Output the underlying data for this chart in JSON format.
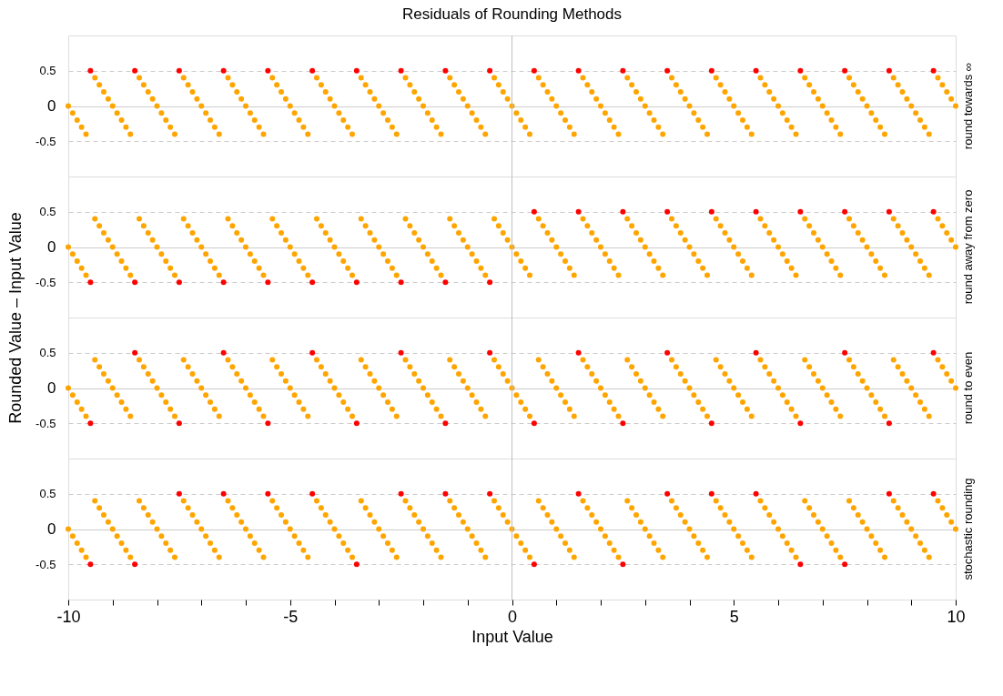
{
  "chart_data": [
    {
      "type": "scatter",
      "title": "Residuals of Rounding Methods",
      "y2label": "round towards ∞",
      "marker": "circle",
      "grid": "y",
      "tick_labels": "y",
      "x": [
        -10,
        -9.9,
        -9.8,
        -9.7,
        -9.6,
        -9.5,
        -9.4,
        -9.3,
        -9.2,
        -9.1,
        -9,
        -8.9,
        -8.8,
        -8.7,
        -8.6,
        -8.5,
        -8.4,
        -8.3,
        -8.2,
        -8.1,
        -8,
        -7.9,
        -7.8,
        -7.7,
        -7.6,
        -7.5,
        -7.4,
        -7.3,
        -7.2,
        -7.1,
        -7,
        -6.9,
        -6.8,
        -6.7,
        -6.6,
        -6.5,
        -6.4,
        -6.3,
        -6.2,
        -6.1,
        -6,
        -5.9,
        -5.8,
        -5.7,
        -5.6,
        -5.5,
        -5.4,
        -5.3,
        -5.2,
        -5.1,
        -5,
        -4.9,
        -4.8,
        -4.7,
        -4.6,
        -4.5,
        -4.4,
        -4.3,
        -4.2,
        -4.1,
        -4,
        -3.9,
        -3.8,
        -3.7,
        -3.6,
        -3.5,
        -3.4,
        -3.3,
        -3.2,
        -3.1,
        -3,
        -2.9,
        -2.8,
        -2.7,
        -2.6,
        -2.5,
        -2.4,
        -2.3,
        -2.2,
        -2.1,
        -2,
        -1.9,
        -1.8,
        -1.7,
        -1.6,
        -1.5,
        -1.4,
        -1.3,
        -1.2,
        -1.1,
        -1,
        -0.9,
        -0.8,
        -0.7,
        -0.6,
        -0.5,
        -0.4,
        -0.3,
        -0.2,
        -0.1,
        0,
        0.1,
        0.2,
        0.3,
        0.4,
        0.5,
        0.6,
        0.7,
        0.8,
        0.9,
        1,
        1.1,
        1.2,
        1.3,
        1.4,
        1.5,
        1.6,
        1.7,
        1.8,
        1.9,
        2,
        2.1,
        2.2,
        2.3,
        2.4,
        2.5,
        2.6,
        2.7,
        2.8,
        2.9,
        3,
        3.1,
        3.2,
        3.3,
        3.4,
        3.5,
        3.6,
        3.7,
        3.8,
        3.9,
        4,
        4.1,
        4.2,
        4.3,
        4.4,
        4.5,
        4.6,
        4.7,
        4.8,
        4.9,
        5,
        5.1,
        5.2,
        5.3,
        5.4,
        5.5,
        5.6,
        5.7,
        5.8,
        5.9,
        6,
        6.1,
        6.2,
        6.3,
        6.4,
        6.5,
        6.6,
        6.7,
        6.8,
        6.9,
        7,
        7.1,
        7.2,
        7.3,
        7.4,
        7.5,
        7.6,
        7.7,
        7.8,
        7.9,
        8,
        8.1,
        8.2,
        8.3,
        8.4,
        8.5,
        8.6,
        8.7,
        8.8,
        8.9,
        9,
        9.1,
        9.2,
        9.3,
        9.4,
        9.5,
        9.6,
        9.7,
        9.8,
        9.9,
        10
      ],
      "xlim": [
        -10,
        10
      ],
      "ylim": [
        -1,
        1
      ],
      "yticks": [
        -0.5,
        0,
        0.5
      ],
      "ref_lines": [
        {
          "axis": "x",
          "value": 0,
          "color": "#c0c0c0"
        }
      ],
      "series": [
        {
          "color": "#ffa500",
          "values": [
            0,
            -0.1,
            -0.2,
            -0.3,
            -0.4,
            null,
            0.4,
            0.3,
            0.2,
            0.1,
            0,
            -0.1,
            -0.2,
            -0.3,
            -0.4,
            null,
            0.4,
            0.3,
            0.2,
            0.1,
            0,
            -0.1,
            -0.2,
            -0.3,
            -0.4,
            null,
            0.4,
            0.3,
            0.2,
            0.1,
            0,
            -0.1,
            -0.2,
            -0.3,
            -0.4,
            null,
            0.4,
            0.3,
            0.2,
            0.1,
            0,
            -0.1,
            -0.2,
            -0.3,
            -0.4,
            null,
            0.4,
            0.3,
            0.2,
            0.1,
            0,
            -0.1,
            -0.2,
            -0.3,
            -0.4,
            null,
            0.4,
            0.3,
            0.2,
            0.1,
            0,
            -0.1,
            -0.2,
            -0.3,
            -0.4,
            null,
            0.4,
            0.3,
            0.2,
            0.1,
            0,
            -0.1,
            -0.2,
            -0.3,
            -0.4,
            null,
            0.4,
            0.3,
            0.2,
            0.1,
            0,
            -0.1,
            -0.2,
            -0.3,
            -0.4,
            null,
            0.4,
            0.3,
            0.2,
            0.1,
            0,
            -0.1,
            -0.2,
            -0.3,
            -0.4,
            null,
            0.4,
            0.3,
            0.2,
            0.1,
            0,
            -0.1,
            -0.2,
            -0.3,
            -0.4,
            null,
            0.4,
            0.3,
            0.2,
            0.1,
            0,
            -0.1,
            -0.2,
            -0.3,
            -0.4,
            null,
            0.4,
            0.3,
            0.2,
            0.1,
            0,
            -0.1,
            -0.2,
            -0.3,
            -0.4,
            null,
            0.4,
            0.3,
            0.2,
            0.1,
            0,
            -0.1,
            -0.2,
            -0.3,
            -0.4,
            null,
            0.4,
            0.3,
            0.2,
            0.1,
            0,
            -0.1,
            -0.2,
            -0.3,
            -0.4,
            null,
            0.4,
            0.3,
            0.2,
            0.1,
            0,
            -0.1,
            -0.2,
            -0.3,
            -0.4,
            null,
            0.4,
            0.3,
            0.2,
            0.1,
            0,
            -0.1,
            -0.2,
            -0.3,
            -0.4,
            null,
            0.4,
            0.3,
            0.2,
            0.1,
            0,
            -0.1,
            -0.2,
            -0.3,
            -0.4,
            null,
            0.4,
            0.3,
            0.2,
            0.1,
            0,
            -0.1,
            -0.2,
            -0.3,
            -0.4,
            null,
            0.4,
            0.3,
            0.2,
            0.1,
            0,
            -0.1,
            -0.2,
            -0.3,
            -0.4,
            null,
            0.4,
            0.3,
            0.2,
            0.1,
            0
          ]
        },
        {
          "color": "#ff0000",
          "x": [
            -9.5,
            -8.5,
            -7.5,
            -6.5,
            -5.5,
            -4.5,
            -3.5,
            -2.5,
            -1.5,
            -0.5,
            0.5,
            1.5,
            2.5,
            3.5,
            4.5,
            5.5,
            6.5,
            7.5,
            8.5,
            9.5
          ],
          "values": [
            0.5,
            0.5,
            0.5,
            0.5,
            0.5,
            0.5,
            0.5,
            0.5,
            0.5,
            0.5,
            0.5,
            0.5,
            0.5,
            0.5,
            0.5,
            0.5,
            0.5,
            0.5,
            0.5,
            0.5
          ]
        }
      ]
    },
    {
      "type": "scatter",
      "y2label": "round away from zero",
      "ylabel": "Rounded Value – Input Value",
      "marker": "circle",
      "grid": "y",
      "tick_labels": "y",
      "x": [
        -10,
        -9.9,
        -9.8,
        -9.7,
        -9.6,
        -9.5,
        -9.4,
        -9.3,
        -9.2,
        -9.1,
        -9,
        -8.9,
        -8.8,
        -8.7,
        -8.6,
        -8.5,
        -8.4,
        -8.3,
        -8.2,
        -8.1,
        -8,
        -7.9,
        -7.8,
        -7.7,
        -7.6,
        -7.5,
        -7.4,
        -7.3,
        -7.2,
        -7.1,
        -7,
        -6.9,
        -6.8,
        -6.7,
        -6.6,
        -6.5,
        -6.4,
        -6.3,
        -6.2,
        -6.1,
        -6,
        -5.9,
        -5.8,
        -5.7,
        -5.6,
        -5.5,
        -5.4,
        -5.3,
        -5.2,
        -5.1,
        -5,
        -4.9,
        -4.8,
        -4.7,
        -4.6,
        -4.5,
        -4.4,
        -4.3,
        -4.2,
        -4.1,
        -4,
        -3.9,
        -3.8,
        -3.7,
        -3.6,
        -3.5,
        -3.4,
        -3.3,
        -3.2,
        -3.1,
        -3,
        -2.9,
        -2.8,
        -2.7,
        -2.6,
        -2.5,
        -2.4,
        -2.3,
        -2.2,
        -2.1,
        -2,
        -1.9,
        -1.8,
        -1.7,
        -1.6,
        -1.5,
        -1.4,
        -1.3,
        -1.2,
        -1.1,
        -1,
        -0.9,
        -0.8,
        -0.7,
        -0.6,
        -0.5,
        -0.4,
        -0.3,
        -0.2,
        -0.1,
        0,
        0.1,
        0.2,
        0.3,
        0.4,
        0.5,
        0.6,
        0.7,
        0.8,
        0.9,
        1,
        1.1,
        1.2,
        1.3,
        1.4,
        1.5,
        1.6,
        1.7,
        1.8,
        1.9,
        2,
        2.1,
        2.2,
        2.3,
        2.4,
        2.5,
        2.6,
        2.7,
        2.8,
        2.9,
        3,
        3.1,
        3.2,
        3.3,
        3.4,
        3.5,
        3.6,
        3.7,
        3.8,
        3.9,
        4,
        4.1,
        4.2,
        4.3,
        4.4,
        4.5,
        4.6,
        4.7,
        4.8,
        4.9,
        5,
        5.1,
        5.2,
        5.3,
        5.4,
        5.5,
        5.6,
        5.7,
        5.8,
        5.9,
        6,
        6.1,
        6.2,
        6.3,
        6.4,
        6.5,
        6.6,
        6.7,
        6.8,
        6.9,
        7,
        7.1,
        7.2,
        7.3,
        7.4,
        7.5,
        7.6,
        7.7,
        7.8,
        7.9,
        8,
        8.1,
        8.2,
        8.3,
        8.4,
        8.5,
        8.6,
        8.7,
        8.8,
        8.9,
        9,
        9.1,
        9.2,
        9.3,
        9.4,
        9.5,
        9.6,
        9.7,
        9.8,
        9.9,
        10
      ],
      "xlim": [
        -10,
        10
      ],
      "ylim": [
        -1,
        1
      ],
      "yticks": [
        -0.5,
        0,
        0.5
      ],
      "ref_lines": [
        {
          "axis": "x",
          "value": 0,
          "color": "#c0c0c0"
        }
      ],
      "series": [
        {
          "color": "#ffa500",
          "values": [
            0,
            -0.1,
            -0.2,
            -0.3,
            -0.4,
            null,
            0.4,
            0.3,
            0.2,
            0.1,
            0,
            -0.1,
            -0.2,
            -0.3,
            -0.4,
            null,
            0.4,
            0.3,
            0.2,
            0.1,
            0,
            -0.1,
            -0.2,
            -0.3,
            -0.4,
            null,
            0.4,
            0.3,
            0.2,
            0.1,
            0,
            -0.1,
            -0.2,
            -0.3,
            -0.4,
            null,
            0.4,
            0.3,
            0.2,
            0.1,
            0,
            -0.1,
            -0.2,
            -0.3,
            -0.4,
            null,
            0.4,
            0.3,
            0.2,
            0.1,
            0,
            -0.1,
            -0.2,
            -0.3,
            -0.4,
            null,
            0.4,
            0.3,
            0.2,
            0.1,
            0,
            -0.1,
            -0.2,
            -0.3,
            -0.4,
            null,
            0.4,
            0.3,
            0.2,
            0.1,
            0,
            -0.1,
            -0.2,
            -0.3,
            -0.4,
            null,
            0.4,
            0.3,
            0.2,
            0.1,
            0,
            -0.1,
            -0.2,
            -0.3,
            -0.4,
            null,
            0.4,
            0.3,
            0.2,
            0.1,
            0,
            -0.1,
            -0.2,
            -0.3,
            -0.4,
            null,
            0.4,
            0.3,
            0.2,
            0.1,
            0,
            -0.1,
            -0.2,
            -0.3,
            -0.4,
            null,
            0.4,
            0.3,
            0.2,
            0.1,
            0,
            -0.1,
            -0.2,
            -0.3,
            -0.4,
            null,
            0.4,
            0.3,
            0.2,
            0.1,
            0,
            -0.1,
            -0.2,
            -0.3,
            -0.4,
            null,
            0.4,
            0.3,
            0.2,
            0.1,
            0,
            -0.1,
            -0.2,
            -0.3,
            -0.4,
            null,
            0.4,
            0.3,
            0.2,
            0.1,
            0,
            -0.1,
            -0.2,
            -0.3,
            -0.4,
            null,
            0.4,
            0.3,
            0.2,
            0.1,
            0,
            -0.1,
            -0.2,
            -0.3,
            -0.4,
            null,
            0.4,
            0.3,
            0.2,
            0.1,
            0,
            -0.1,
            -0.2,
            -0.3,
            -0.4,
            null,
            0.4,
            0.3,
            0.2,
            0.1,
            0,
            -0.1,
            -0.2,
            -0.3,
            -0.4,
            null,
            0.4,
            0.3,
            0.2,
            0.1,
            0,
            -0.1,
            -0.2,
            -0.3,
            -0.4,
            null,
            0.4,
            0.3,
            0.2,
            0.1,
            0,
            -0.1,
            -0.2,
            -0.3,
            -0.4,
            null,
            0.4,
            0.3,
            0.2,
            0.1,
            0
          ]
        },
        {
          "color": "#ff0000",
          "x": [
            -9.5,
            -8.5,
            -7.5,
            -6.5,
            -5.5,
            -4.5,
            -3.5,
            -2.5,
            -1.5,
            -0.5,
            0.5,
            1.5,
            2.5,
            3.5,
            4.5,
            5.5,
            6.5,
            7.5,
            8.5,
            9.5
          ],
          "values": [
            -0.5,
            -0.5,
            -0.5,
            -0.5,
            -0.5,
            -0.5,
            -0.5,
            -0.5,
            -0.5,
            -0.5,
            0.5,
            0.5,
            0.5,
            0.5,
            0.5,
            0.5,
            0.5,
            0.5,
            0.5,
            0.5
          ]
        }
      ]
    },
    {
      "type": "scatter",
      "y2label": "round to even",
      "marker": "circle",
      "grid": "y",
      "tick_labels": "y",
      "x": [
        -10,
        -9.9,
        -9.8,
        -9.7,
        -9.6,
        -9.5,
        -9.4,
        -9.3,
        -9.2,
        -9.1,
        -9,
        -8.9,
        -8.8,
        -8.7,
        -8.6,
        -8.5,
        -8.4,
        -8.3,
        -8.2,
        -8.1,
        -8,
        -7.9,
        -7.8,
        -7.7,
        -7.6,
        -7.5,
        -7.4,
        -7.3,
        -7.2,
        -7.1,
        -7,
        -6.9,
        -6.8,
        -6.7,
        -6.6,
        -6.5,
        -6.4,
        -6.3,
        -6.2,
        -6.1,
        -6,
        -5.9,
        -5.8,
        -5.7,
        -5.6,
        -5.5,
        -5.4,
        -5.3,
        -5.2,
        -5.1,
        -5,
        -4.9,
        -4.8,
        -4.7,
        -4.6,
        -4.5,
        -4.4,
        -4.3,
        -4.2,
        -4.1,
        -4,
        -3.9,
        -3.8,
        -3.7,
        -3.6,
        -3.5,
        -3.4,
        -3.3,
        -3.2,
        -3.1,
        -3,
        -2.9,
        -2.8,
        -2.7,
        -2.6,
        -2.5,
        -2.4,
        -2.3,
        -2.2,
        -2.1,
        -2,
        -1.9,
        -1.8,
        -1.7,
        -1.6,
        -1.5,
        -1.4,
        -1.3,
        -1.2,
        -1.1,
        -1,
        -0.9,
        -0.8,
        -0.7,
        -0.6,
        -0.5,
        -0.4,
        -0.3,
        -0.2,
        -0.1,
        0,
        0.1,
        0.2,
        0.3,
        0.4,
        0.5,
        0.6,
        0.7,
        0.8,
        0.9,
        1,
        1.1,
        1.2,
        1.3,
        1.4,
        1.5,
        1.6,
        1.7,
        1.8,
        1.9,
        2,
        2.1,
        2.2,
        2.3,
        2.4,
        2.5,
        2.6,
        2.7,
        2.8,
        2.9,
        3,
        3.1,
        3.2,
        3.3,
        3.4,
        3.5,
        3.6,
        3.7,
        3.8,
        3.9,
        4,
        4.1,
        4.2,
        4.3,
        4.4,
        4.5,
        4.6,
        4.7,
        4.8,
        4.9,
        5,
        5.1,
        5.2,
        5.3,
        5.4,
        5.5,
        5.6,
        5.7,
        5.8,
        5.9,
        6,
        6.1,
        6.2,
        6.3,
        6.4,
        6.5,
        6.6,
        6.7,
        6.8,
        6.9,
        7,
        7.1,
        7.2,
        7.3,
        7.4,
        7.5,
        7.6,
        7.7,
        7.8,
        7.9,
        8,
        8.1,
        8.2,
        8.3,
        8.4,
        8.5,
        8.6,
        8.7,
        8.8,
        8.9,
        9,
        9.1,
        9.2,
        9.3,
        9.4,
        9.5,
        9.6,
        9.7,
        9.8,
        9.9,
        10
      ],
      "xlim": [
        -10,
        10
      ],
      "ylim": [
        -1,
        1
      ],
      "yticks": [
        -0.5,
        0,
        0.5
      ],
      "ref_lines": [
        {
          "axis": "x",
          "value": 0,
          "color": "#c0c0c0"
        }
      ],
      "series": [
        {
          "color": "#ffa500",
          "values": [
            0,
            -0.1,
            -0.2,
            -0.3,
            -0.4,
            null,
            0.4,
            0.3,
            0.2,
            0.1,
            0,
            -0.1,
            -0.2,
            -0.3,
            -0.4,
            null,
            0.4,
            0.3,
            0.2,
            0.1,
            0,
            -0.1,
            -0.2,
            -0.3,
            -0.4,
            null,
            0.4,
            0.3,
            0.2,
            0.1,
            0,
            -0.1,
            -0.2,
            -0.3,
            -0.4,
            null,
            0.4,
            0.3,
            0.2,
            0.1,
            0,
            -0.1,
            -0.2,
            -0.3,
            -0.4,
            null,
            0.4,
            0.3,
            0.2,
            0.1,
            0,
            -0.1,
            -0.2,
            -0.3,
            -0.4,
            null,
            0.4,
            0.3,
            0.2,
            0.1,
            0,
            -0.1,
            -0.2,
            -0.3,
            -0.4,
            null,
            0.4,
            0.3,
            0.2,
            0.1,
            0,
            -0.1,
            -0.2,
            -0.3,
            -0.4,
            null,
            0.4,
            0.3,
            0.2,
            0.1,
            0,
            -0.1,
            -0.2,
            -0.3,
            -0.4,
            null,
            0.4,
            0.3,
            0.2,
            0.1,
            0,
            -0.1,
            -0.2,
            -0.3,
            -0.4,
            null,
            0.4,
            0.3,
            0.2,
            0.1,
            0,
            -0.1,
            -0.2,
            -0.3,
            -0.4,
            null,
            0.4,
            0.3,
            0.2,
            0.1,
            0,
            -0.1,
            -0.2,
            -0.3,
            -0.4,
            null,
            0.4,
            0.3,
            0.2,
            0.1,
            0,
            -0.1,
            -0.2,
            -0.3,
            -0.4,
            null,
            0.4,
            0.3,
            0.2,
            0.1,
            0,
            -0.1,
            -0.2,
            -0.3,
            -0.4,
            null,
            0.4,
            0.3,
            0.2,
            0.1,
            0,
            -0.1,
            -0.2,
            -0.3,
            -0.4,
            null,
            0.4,
            0.3,
            0.2,
            0.1,
            0,
            -0.1,
            -0.2,
            -0.3,
            -0.4,
            null,
            0.4,
            0.3,
            0.2,
            0.1,
            0,
            -0.1,
            -0.2,
            -0.3,
            -0.4,
            null,
            0.4,
            0.3,
            0.2,
            0.1,
            0,
            -0.1,
            -0.2,
            -0.3,
            -0.4,
            null,
            0.4,
            0.3,
            0.2,
            0.1,
            0,
            -0.1,
            -0.2,
            -0.3,
            -0.4,
            null,
            0.4,
            0.3,
            0.2,
            0.1,
            0,
            -0.1,
            -0.2,
            -0.3,
            -0.4,
            null,
            0.4,
            0.3,
            0.2,
            0.1,
            0
          ]
        },
        {
          "color": "#ff0000",
          "x": [
            -9.5,
            -8.5,
            -7.5,
            -6.5,
            -5.5,
            -4.5,
            -3.5,
            -2.5,
            -1.5,
            -0.5,
            0.5,
            1.5,
            2.5,
            3.5,
            4.5,
            5.5,
            6.5,
            7.5,
            8.5,
            9.5
          ],
          "values": [
            -0.5,
            0.5,
            -0.5,
            0.5,
            -0.5,
            0.5,
            -0.5,
            0.5,
            -0.5,
            0.5,
            -0.5,
            0.5,
            -0.5,
            0.5,
            -0.5,
            0.5,
            -0.5,
            0.5,
            -0.5,
            0.5
          ]
        }
      ]
    },
    {
      "type": "scatter",
      "y2label": "stochastic rounding",
      "xlabel": "Input Value",
      "marker": "circle",
      "grid": "y",
      "x": [
        -10,
        -9.9,
        -9.8,
        -9.7,
        -9.6,
        -9.5,
        -9.4,
        -9.3,
        -9.2,
        -9.1,
        -9,
        -8.9,
        -8.8,
        -8.7,
        -8.6,
        -8.5,
        -8.4,
        -8.3,
        -8.2,
        -8.1,
        -8,
        -7.9,
        -7.8,
        -7.7,
        -7.6,
        -7.5,
        -7.4,
        -7.3,
        -7.2,
        -7.1,
        -7,
        -6.9,
        -6.8,
        -6.7,
        -6.6,
        -6.5,
        -6.4,
        -6.3,
        -6.2,
        -6.1,
        -6,
        -5.9,
        -5.8,
        -5.7,
        -5.6,
        -5.5,
        -5.4,
        -5.3,
        -5.2,
        -5.1,
        -5,
        -4.9,
        -4.8,
        -4.7,
        -4.6,
        -4.5,
        -4.4,
        -4.3,
        -4.2,
        -4.1,
        -4,
        -3.9,
        -3.8,
        -3.7,
        -3.6,
        -3.5,
        -3.4,
        -3.3,
        -3.2,
        -3.1,
        -3,
        -2.9,
        -2.8,
        -2.7,
        -2.6,
        -2.5,
        -2.4,
        -2.3,
        -2.2,
        -2.1,
        -2,
        -1.9,
        -1.8,
        -1.7,
        -1.6,
        -1.5,
        -1.4,
        -1.3,
        -1.2,
        -1.1,
        -1,
        -0.9,
        -0.8,
        -0.7,
        -0.6,
        -0.5,
        -0.4,
        -0.3,
        -0.2,
        -0.1,
        0,
        0.1,
        0.2,
        0.3,
        0.4,
        0.5,
        0.6,
        0.7,
        0.8,
        0.9,
        1,
        1.1,
        1.2,
        1.3,
        1.4,
        1.5,
        1.6,
        1.7,
        1.8,
        1.9,
        2,
        2.1,
        2.2,
        2.3,
        2.4,
        2.5,
        2.6,
        2.7,
        2.8,
        2.9,
        3,
        3.1,
        3.2,
        3.3,
        3.4,
        3.5,
        3.6,
        3.7,
        3.8,
        3.9,
        4,
        4.1,
        4.2,
        4.3,
        4.4,
        4.5,
        4.6,
        4.7,
        4.8,
        4.9,
        5,
        5.1,
        5.2,
        5.3,
        5.4,
        5.5,
        5.6,
        5.7,
        5.8,
        5.9,
        6,
        6.1,
        6.2,
        6.3,
        6.4,
        6.5,
        6.6,
        6.7,
        6.8,
        6.9,
        7,
        7.1,
        7.2,
        7.3,
        7.4,
        7.5,
        7.6,
        7.7,
        7.8,
        7.9,
        8,
        8.1,
        8.2,
        8.3,
        8.4,
        8.5,
        8.6,
        8.7,
        8.8,
        8.9,
        9,
        9.1,
        9.2,
        9.3,
        9.4,
        9.5,
        9.6,
        9.7,
        9.8,
        9.9,
        10
      ],
      "xlim": [
        -10,
        10
      ],
      "ylim": [
        -1,
        1
      ],
      "yticks": [
        -0.5,
        0,
        0.5
      ],
      "xticks": [
        -10,
        {
          "value": -9,
          "label": null
        },
        {
          "value": -8,
          "label": null
        },
        {
          "value": -7,
          "label": null
        },
        {
          "value": -6,
          "label": null
        },
        -5,
        {
          "value": -4,
          "label": null
        },
        {
          "value": -3,
          "label": null
        },
        {
          "value": -2,
          "label": null
        },
        {
          "value": -1,
          "label": null
        },
        0,
        {
          "value": 1,
          "label": null
        },
        {
          "value": 2,
          "label": null
        },
        {
          "value": 3,
          "label": null
        },
        {
          "value": 4,
          "label": null
        },
        5,
        {
          "value": 6,
          "label": null
        },
        {
          "value": 7,
          "label": null
        },
        {
          "value": 8,
          "label": null
        },
        {
          "value": 9,
          "label": null
        },
        10
      ],
      "ref_lines": [
        {
          "axis": "x",
          "value": 0,
          "color": "#c0c0c0"
        }
      ],
      "series": [
        {
          "color": "#ffa500",
          "values": [
            0,
            -0.1,
            -0.2,
            -0.3,
            -0.4,
            null,
            0.4,
            0.3,
            0.2,
            0.1,
            0,
            -0.1,
            -0.2,
            -0.3,
            -0.4,
            null,
            0.4,
            0.3,
            0.2,
            0.1,
            0,
            -0.1,
            -0.2,
            -0.3,
            -0.4,
            null,
            0.4,
            0.3,
            0.2,
            0.1,
            0,
            -0.1,
            -0.2,
            -0.3,
            -0.4,
            null,
            0.4,
            0.3,
            0.2,
            0.1,
            0,
            -0.1,
            -0.2,
            -0.3,
            -0.4,
            null,
            0.4,
            0.3,
            0.2,
            0.1,
            0,
            -0.1,
            -0.2,
            -0.3,
            -0.4,
            null,
            0.4,
            0.3,
            0.2,
            0.1,
            0,
            -0.1,
            -0.2,
            -0.3,
            -0.4,
            null,
            0.4,
            0.3,
            0.2,
            0.1,
            0,
            -0.1,
            -0.2,
            -0.3,
            -0.4,
            null,
            0.4,
            0.3,
            0.2,
            0.1,
            0,
            -0.1,
            -0.2,
            -0.3,
            -0.4,
            null,
            0.4,
            0.3,
            0.2,
            0.1,
            0,
            -0.1,
            -0.2,
            -0.3,
            -0.4,
            null,
            0.4,
            0.3,
            0.2,
            0.1,
            0,
            -0.1,
            -0.2,
            -0.3,
            -0.4,
            null,
            0.4,
            0.3,
            0.2,
            0.1,
            0,
            -0.1,
            -0.2,
            -0.3,
            -0.4,
            null,
            0.4,
            0.3,
            0.2,
            0.1,
            0,
            -0.1,
            -0.2,
            -0.3,
            -0.4,
            null,
            0.4,
            0.3,
            0.2,
            0.1,
            0,
            -0.1,
            -0.2,
            -0.3,
            -0.4,
            null,
            0.4,
            0.3,
            0.2,
            0.1,
            0,
            -0.1,
            -0.2,
            -0.3,
            -0.4,
            null,
            0.4,
            0.3,
            0.2,
            0.1,
            0,
            -0.1,
            -0.2,
            -0.3,
            -0.4,
            null,
            0.4,
            0.3,
            0.2,
            0.1,
            0,
            -0.1,
            -0.2,
            -0.3,
            -0.4,
            null,
            0.4,
            0.3,
            0.2,
            0.1,
            0,
            -0.1,
            -0.2,
            -0.3,
            -0.4,
            null,
            0.4,
            0.3,
            0.2,
            0.1,
            0,
            -0.1,
            -0.2,
            -0.3,
            -0.4,
            null,
            0.4,
            0.3,
            0.2,
            0.1,
            0,
            -0.1,
            -0.2,
            -0.3,
            -0.4,
            null,
            0.4,
            0.3,
            0.2,
            0.1,
            0
          ]
        },
        {
          "color": "#ff0000",
          "x": [
            -9.5,
            -8.5,
            -7.5,
            -6.5,
            -5.5,
            -4.5,
            -3.5,
            -2.5,
            -1.5,
            -0.5,
            0.5,
            1.5,
            2.5,
            3.5,
            4.5,
            5.5,
            6.5,
            7.5,
            8.5,
            9.5
          ],
          "values": [
            -0.5,
            -0.5,
            0.5,
            0.5,
            0.5,
            0.5,
            -0.5,
            0.5,
            0.5,
            0.5,
            -0.5,
            0.5,
            -0.5,
            0.5,
            0.5,
            0.5,
            -0.5,
            -0.5,
            0.5,
            0.5
          ]
        }
      ]
    }
  ]
}
